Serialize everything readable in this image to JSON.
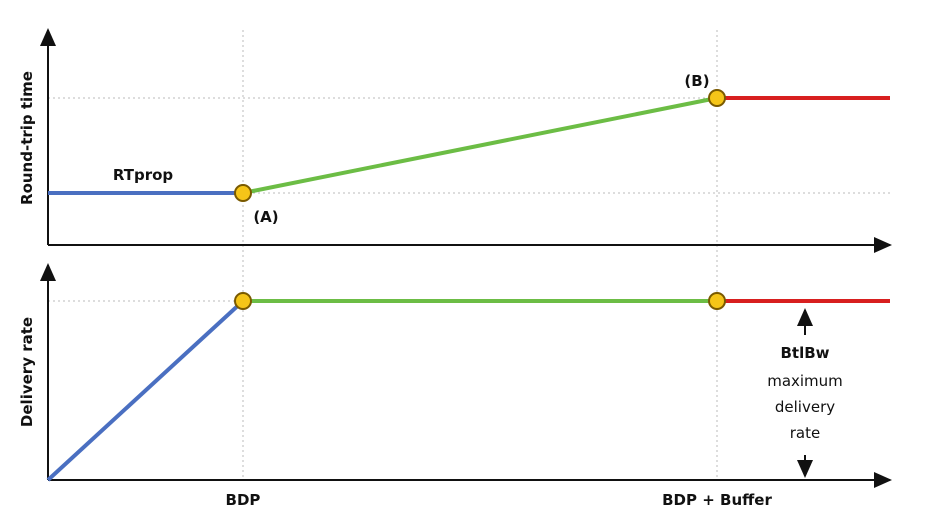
{
  "top_panel": {
    "y_label": "Round-trip time",
    "line_label": "RTprop",
    "point_a": "(A)",
    "point_b": "(B)"
  },
  "bottom_panel": {
    "y_label": "Delivery rate",
    "limit_label": "BtlBw",
    "limit_description": [
      "maximum",
      "delivery",
      "rate"
    ]
  },
  "x_labels": [
    "BDP",
    "BDP + Buffer"
  ]
}
